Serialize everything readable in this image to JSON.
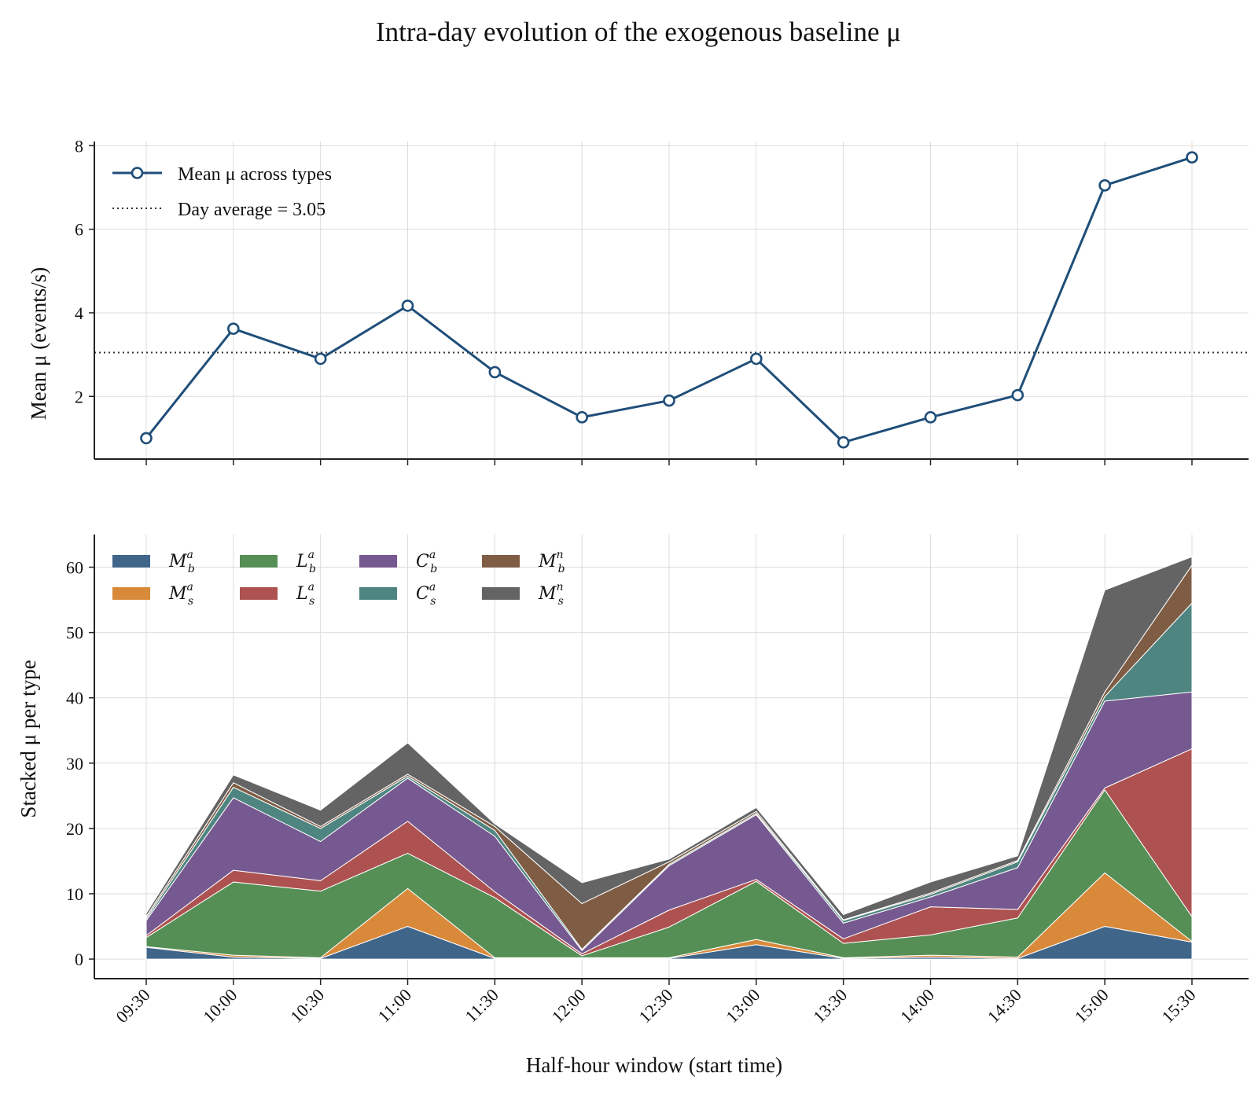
{
  "figure": {
    "title": "Intra-day evolution of the exogenous baseline μ"
  },
  "chart_data": [
    {
      "type": "line",
      "categories": [
        "09:30",
        "10:00",
        "10:30",
        "11:00",
        "11:30",
        "12:00",
        "12:30",
        "13:00",
        "13:30",
        "14:00",
        "14:30",
        "15:00",
        "15:30"
      ],
      "series": [
        {
          "name": "Mean μ across types",
          "values": [
            1.0,
            3.62,
            2.9,
            4.17,
            2.58,
            1.5,
            1.9,
            2.9,
            0.9,
            1.5,
            2.03,
            7.05,
            7.72
          ],
          "color": "#1f4e79"
        }
      ],
      "reference_line": {
        "label": "Day average = 3.05",
        "value": 3.05,
        "style": "dotted",
        "color": "#333333"
      },
      "xlabel": "",
      "ylabel": "Mean μ (events/s)",
      "ylim": [
        0.5,
        8.1
      ],
      "yticks": [
        2,
        4,
        6,
        8
      ],
      "grid": true,
      "legend_position": "upper-left"
    },
    {
      "type": "area",
      "stacked": true,
      "categories": [
        "09:30",
        "10:00",
        "10:30",
        "11:00",
        "11:30",
        "12:00",
        "12:30",
        "13:00",
        "13:30",
        "14:00",
        "14:30",
        "15:00",
        "15:30"
      ],
      "series": [
        {
          "name": "M_b^a",
          "base": "M",
          "sub": "b",
          "sup": "a",
          "color": "#3f6589",
          "values": [
            1.8,
            0.3,
            0.1,
            5.0,
            0.1,
            0.1,
            0.1,
            2.2,
            0.1,
            0.3,
            0.1,
            5.0,
            2.6
          ]
        },
        {
          "name": "M_s^a",
          "base": "M",
          "sub": "s",
          "sup": "a",
          "color": "#d9893a",
          "values": [
            0.1,
            0.3,
            0.1,
            5.8,
            0.1,
            0.1,
            0.1,
            0.8,
            0.1,
            0.3,
            0.2,
            8.2,
            0.1
          ]
        },
        {
          "name": "L_b^a",
          "base": "L",
          "sub": "b",
          "sup": "a",
          "color": "#558f55",
          "values": [
            1.4,
            11.2,
            10.2,
            5.4,
            9.2,
            0.3,
            4.7,
            8.9,
            2.2,
            3.1,
            6.0,
            12.7,
            3.8
          ]
        },
        {
          "name": "L_s^a",
          "base": "L",
          "sub": "s",
          "sup": "a",
          "color": "#ad5250",
          "values": [
            0.3,
            1.8,
            1.6,
            4.9,
            0.9,
            0.3,
            2.6,
            0.3,
            0.7,
            4.3,
            1.3,
            0.3,
            25.7
          ]
        },
        {
          "name": "C_b^a",
          "base": "C",
          "sub": "b",
          "sup": "a",
          "color": "#765990",
          "values": [
            2.3,
            11.1,
            6.0,
            6.6,
            8.5,
            0.5,
            6.8,
            9.9,
            2.4,
            1.5,
            6.4,
            13.3,
            8.7
          ]
        },
        {
          "name": "C_s^a",
          "base": "C",
          "sub": "s",
          "sup": "a",
          "color": "#4e8580",
          "values": [
            0.3,
            1.6,
            2.0,
            0.3,
            0.9,
            0.2,
            0.2,
            0.2,
            0.4,
            0.4,
            0.9,
            0.7,
            13.6
          ]
        },
        {
          "name": "M_b^n",
          "base": "M",
          "sub": "b",
          "sup": "n",
          "color": "#7f5d45",
          "values": [
            0.3,
            0.7,
            0.3,
            0.3,
            0.6,
            7.0,
            0.4,
            0.3,
            0.1,
            0.2,
            0.2,
            0.7,
            5.8
          ]
        },
        {
          "name": "M_s^n",
          "base": "M",
          "sub": "s",
          "sup": "n",
          "color": "#646464",
          "values": [
            0.5,
            1.2,
            2.5,
            4.8,
            0.4,
            3.2,
            0.4,
            0.6,
            0.8,
            1.7,
            0.7,
            15.6,
            1.3
          ]
        }
      ],
      "xlabel": "Half-hour window (start time)",
      "ylabel": "Stacked μ per type",
      "ylim": [
        -3,
        65
      ],
      "yticks": [
        0,
        10,
        20,
        30,
        40,
        50,
        60
      ],
      "grid": true,
      "legend_position": "upper-left",
      "legend_columns": 4
    }
  ]
}
